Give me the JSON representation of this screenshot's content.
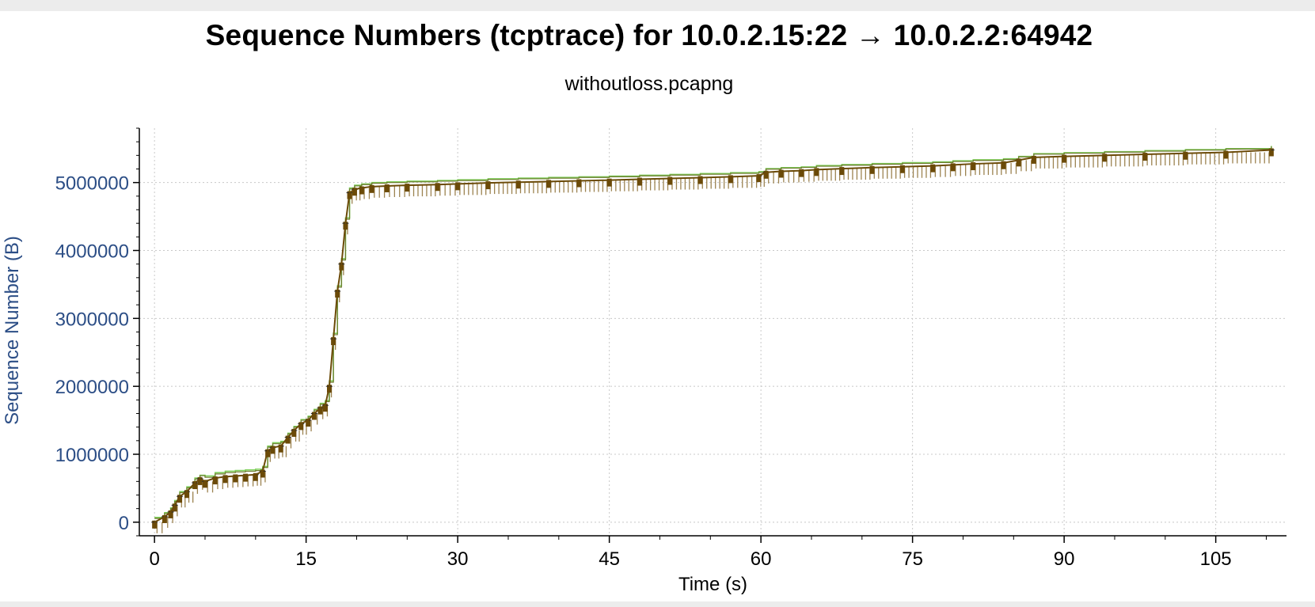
{
  "window": {
    "title": "Sequence Numbers (tcptrace) for 10.0.2.15:22 → 10.0.2.2:64942",
    "subtitle": "withoutloss.pcapng"
  },
  "colors": {
    "axis_text": "#2c4e86",
    "segment": "#6b4a08",
    "segment_tick": "#9c8350",
    "window_line": "#7fcf5a",
    "ack_line": "#6e7a2e",
    "grid": "#c8c8c8",
    "background": "#ffffff"
  },
  "chart_data": {
    "type": "line",
    "xlabel": "Time (s)",
    "ylabel": "Sequence Number (B)",
    "xlim": [
      -1.5,
      112
    ],
    "ylim": [
      -200000,
      5800000
    ],
    "xticks": [
      0,
      15,
      30,
      45,
      60,
      75,
      90,
      105
    ],
    "yticks": [
      0,
      1000000,
      2000000,
      3000000,
      4000000,
      5000000
    ],
    "xtick_labels": [
      "0",
      "15",
      "30",
      "45",
      "60",
      "75",
      "90",
      "105"
    ],
    "ytick_labels": [
      "0",
      "1000000",
      "2000000",
      "3000000",
      "4000000",
      "5000000"
    ],
    "grid": true,
    "series": [
      {
        "kind": "sequence",
        "x": [
          0,
          1,
          1.6,
          2,
          2.5,
          3.2,
          4,
          4.5,
          5,
          6,
          7,
          8,
          9,
          10,
          10.7,
          11.2,
          11.7,
          12.5,
          13.2,
          13.8,
          14.5,
          15.2,
          15.8,
          16.4,
          16.9,
          17.3,
          17.7,
          18.1,
          18.5,
          18.9,
          19.3,
          19.8,
          20.5,
          21.5,
          23,
          25,
          28,
          30,
          33,
          36,
          39,
          42,
          45,
          48,
          51,
          54,
          57,
          59.8,
          60.5,
          62,
          64,
          65.5,
          68,
          71,
          74,
          77,
          79,
          81,
          84,
          85.5,
          87,
          90,
          94,
          98,
          102,
          106,
          110.5
        ],
        "y": [
          0,
          80000,
          150000,
          250000,
          380000,
          450000,
          580000,
          640000,
          600000,
          650000,
          670000,
          680000,
          690000,
          700000,
          750000,
          1050000,
          1100000,
          1120000,
          1250000,
          1350000,
          1450000,
          1500000,
          1600000,
          1680000,
          1720000,
          2000000,
          2700000,
          3400000,
          3800000,
          4400000,
          4850000,
          4900000,
          4920000,
          4940000,
          4950000,
          4960000,
          4970000,
          4980000,
          4995000,
          5005000,
          5015000,
          5025000,
          5035000,
          5048000,
          5060000,
          5072000,
          5085000,
          5100000,
          5150000,
          5165000,
          5175000,
          5190000,
          5205000,
          5220000,
          5232000,
          5245000,
          5260000,
          5275000,
          5290000,
          5330000,
          5370000,
          5385000,
          5400000,
          5415000,
          5430000,
          5445000,
          5480000
        ]
      },
      {
        "kind": "receive-window",
        "x": [
          0,
          1,
          1.6,
          2,
          2.5,
          3.2,
          4,
          4.5,
          5,
          6,
          7,
          8,
          9,
          10,
          10.7,
          11.2,
          11.7,
          12.5,
          13.2,
          13.8,
          14.5,
          15.2,
          15.8,
          16.4,
          16.9,
          17.3,
          17.7,
          18.1,
          18.5,
          18.9,
          19.3,
          19.8,
          20.5,
          21.5,
          23,
          25,
          28,
          30,
          33,
          36,
          39,
          42,
          45,
          48,
          51,
          54,
          57,
          59.8,
          60.5,
          62,
          64,
          65.5,
          68,
          71,
          74,
          77,
          79,
          81,
          84,
          85.5,
          87,
          90,
          94,
          98,
          102,
          106,
          110.5
        ],
        "y": [
          70000,
          140000,
          210000,
          320000,
          450000,
          520000,
          650000,
          690000,
          680000,
          730000,
          750000,
          760000,
          770000,
          780000,
          820000,
          1120000,
          1170000,
          1190000,
          1310000,
          1410000,
          1510000,
          1560000,
          1660000,
          1750000,
          1790000,
          2080000,
          2780000,
          3480000,
          3880000,
          4480000,
          4920000,
          4960000,
          4980000,
          5000000,
          5010000,
          5020000,
          5030000,
          5040000,
          5055000,
          5065000,
          5075000,
          5085000,
          5095000,
          5108000,
          5120000,
          5132000,
          5145000,
          5160000,
          5205000,
          5220000,
          5230000,
          5250000,
          5265000,
          5280000,
          5292000,
          5305000,
          5320000,
          5335000,
          5350000,
          5385000,
          5425000,
          5440000,
          5455000,
          5470000,
          5485000,
          5500000,
          5540000
        ]
      }
    ]
  }
}
